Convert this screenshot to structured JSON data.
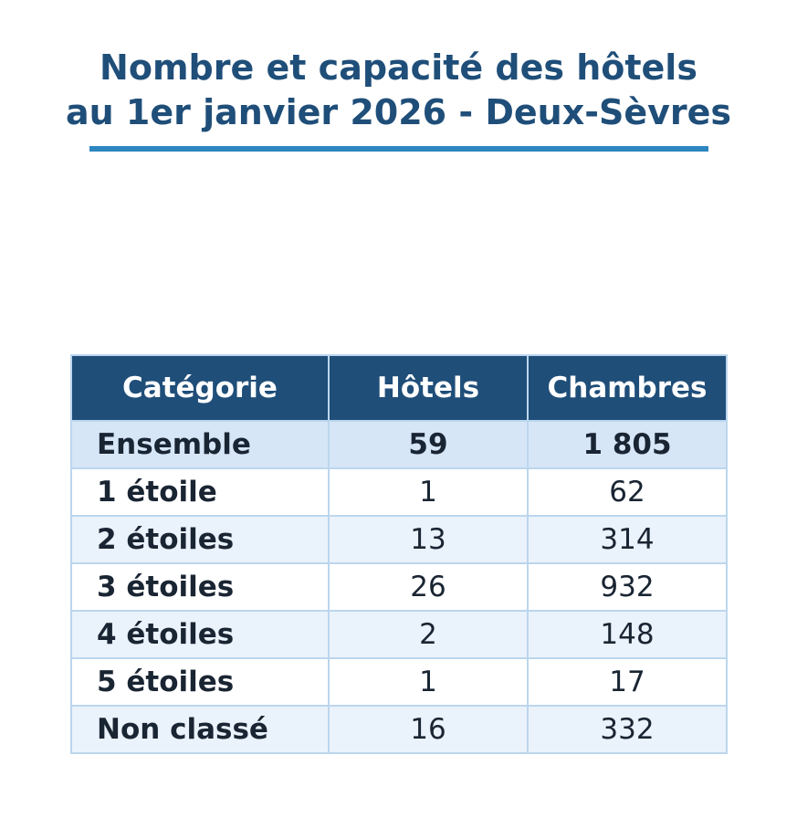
{
  "title_lines": [
    "Nombre et capacité des hôtels",
    "au 1er janvier 2026 - Deux-Sèvres"
  ],
  "colors": {
    "title": "#1f4e79",
    "title_rule": "#2e86c1",
    "header_bg": "#1f4e79",
    "header_text": "#ffffff",
    "total_row_bg": "#d6e6f7",
    "alt_row_bg": "#eaf2fb",
    "grid": "#bcd6ed"
  },
  "chart_data": {
    "type": "table",
    "title": "Nombre et capacité des hôtels au 1er janvier 2026 - Deux-Sèvres",
    "columns": [
      "Catégorie",
      "Hôtels",
      "Chambres"
    ],
    "rows": [
      [
        "Ensemble",
        "59",
        "1 805"
      ],
      [
        "1 étoile",
        "1",
        "62"
      ],
      [
        "2 étoiles",
        "13",
        "314"
      ],
      [
        "3 étoiles",
        "26",
        "932"
      ],
      [
        "4 étoiles",
        "2",
        "148"
      ],
      [
        "5 étoiles",
        "1",
        "17"
      ],
      [
        "Non classé",
        "16",
        "332"
      ]
    ]
  }
}
